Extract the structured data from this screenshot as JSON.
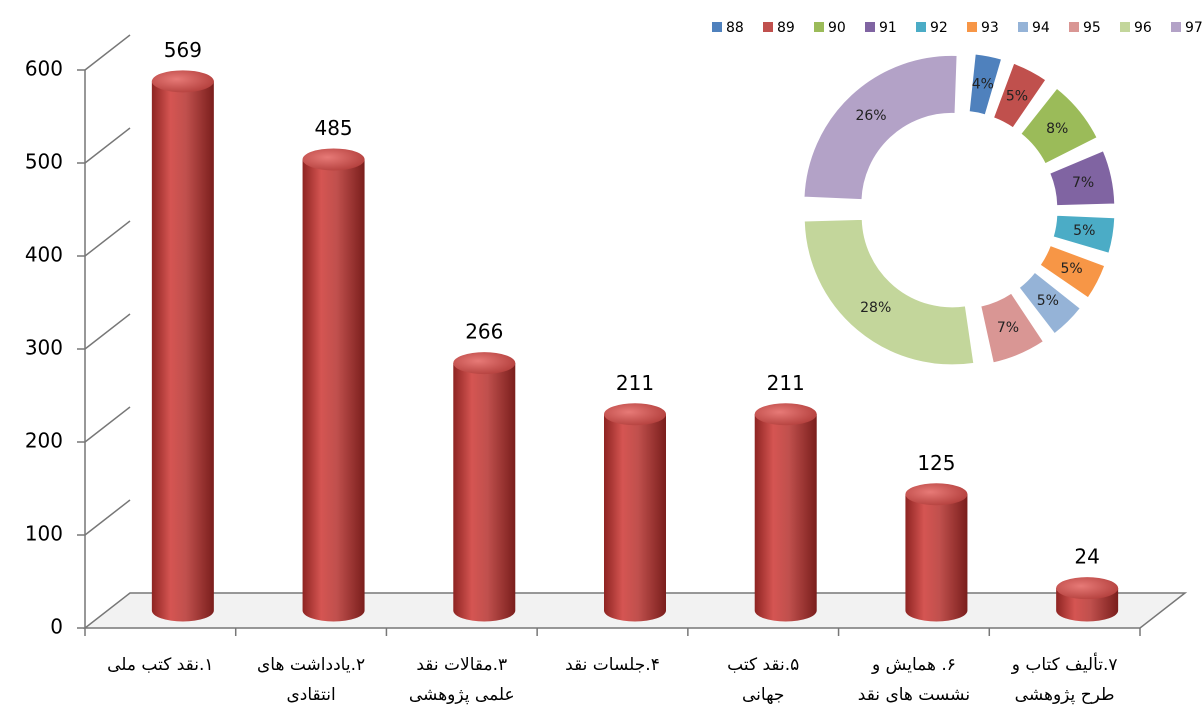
{
  "chart_data": [
    {
      "type": "bar",
      "categories": [
        [
          "١.نقد کتب ملی"
        ],
        [
          "٢.یادداشت های",
          "انتقادی"
        ],
        [
          "٣.مقالات نقد",
          "علمی پژوهشی"
        ],
        [
          "۴.جلسات نقد"
        ],
        [
          "۵.نقد کتب",
          "جهانی"
        ],
        [
          "۶. همایش و",
          "نشست های نقد"
        ],
        [
          "٧.تألیف کتاب و",
          "طرح پژوهشی"
        ]
      ],
      "values": [
        569,
        485,
        266,
        211,
        211,
        125,
        24
      ],
      "color": "#c0504d",
      "ylim": [
        0,
        600
      ],
      "yticks": [
        0,
        100,
        200,
        300,
        400,
        500,
        600
      ],
      "grid": true
    },
    {
      "type": "donut",
      "categories": [
        "88",
        "89",
        "90",
        "91",
        "92",
        "93",
        "94",
        "95",
        "96",
        "97"
      ],
      "values": [
        4,
        5,
        8,
        7,
        5,
        5,
        5,
        7,
        28,
        26
      ],
      "value_labels": [
        "4%",
        "5%",
        "8%",
        "7%",
        "5%",
        "5%",
        "5%",
        "7%",
        "28%",
        "26%"
      ],
      "colors": [
        "#4f81bd",
        "#c0504d",
        "#9bbb59",
        "#8064a2",
        "#4bacc6",
        "#f79646",
        "#95b3d7",
        "#d99694",
        "#c3d69b",
        "#b3a2c7"
      ],
      "legend": "top"
    }
  ]
}
